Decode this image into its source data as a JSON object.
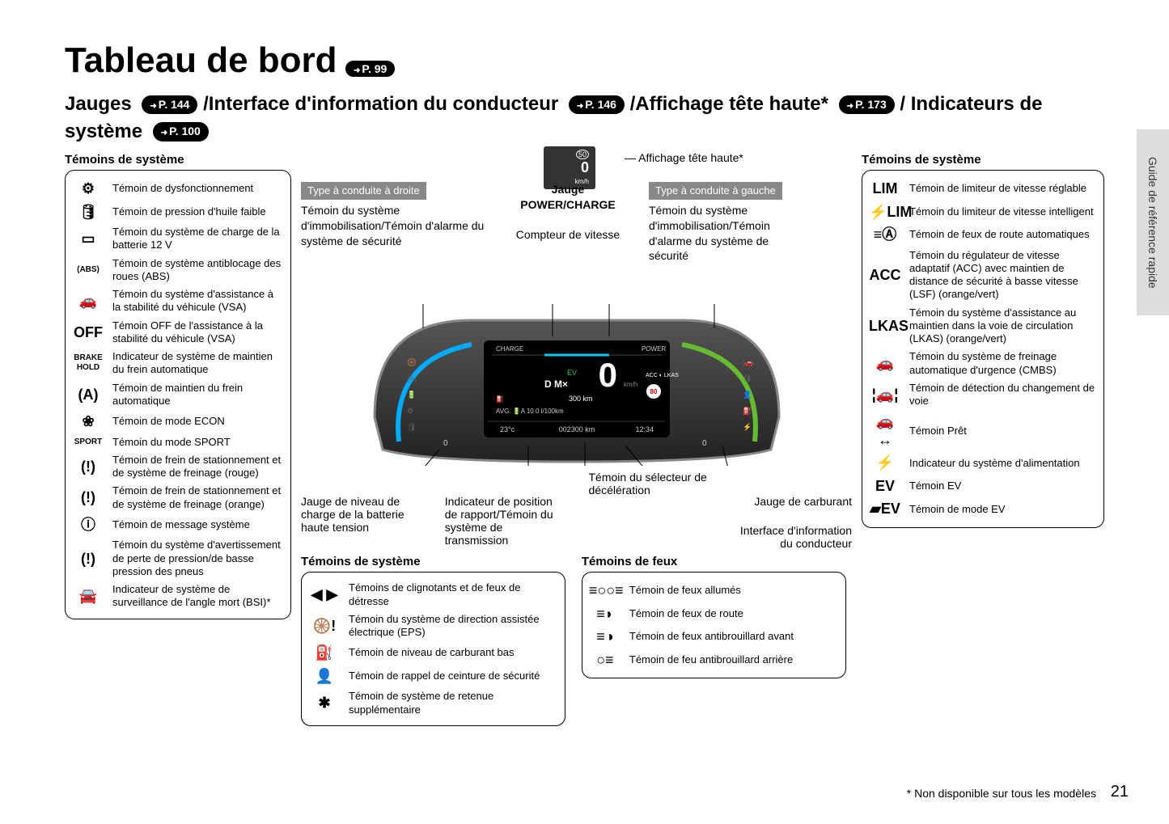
{
  "sideTab": "Guide de référence rapide",
  "title": "Tableau de bord",
  "titleRef": "P. 99",
  "subtitleParts": {
    "p1": "Jauges",
    "r1": "P. 144",
    "p2": "/Interface d'information du conducteur",
    "r2": "P. 146",
    "p3": "/Affichage tête haute*",
    "r3": "P. 173",
    "p4": "/ Indicateurs de système",
    "r4": "P. 100"
  },
  "sectionTitle": "Témoins de système",
  "lightsTitle": "Témoins de feux",
  "leftIndicators": [
    {
      "icon": "⚙",
      "label": "Témoin de dysfonctionnement"
    },
    {
      "icon": "🛢",
      "label": "Témoin de pression d'huile faible"
    },
    {
      "icon": "▭",
      "label": "Témoin du système de charge de la batterie 12 V"
    },
    {
      "icon": "(ABS)",
      "label": "Témoin de système antiblocage des roues (ABS)"
    },
    {
      "icon": "🚗",
      "label": "Témoin du système d'assistance à la stabilité du véhicule (VSA)"
    },
    {
      "icon": "OFF",
      "label": "Témoin OFF de l'assistance à la stabilité du véhicule (VSA)"
    },
    {
      "icon": "BRAKE HOLD",
      "label": "Indicateur de système de maintien du frein automatique"
    },
    {
      "icon": "(A)",
      "label": "Témoin de maintien du frein automatique"
    },
    {
      "icon": "❀",
      "label": "Témoin de mode ECON"
    },
    {
      "icon": "SPORT",
      "label": "Témoin du mode SPORT"
    },
    {
      "icon": "(!)",
      "label": "Témoin de frein de stationnement et de système de freinage (rouge)"
    },
    {
      "icon": "(!)",
      "label": "Témoin de frein de stationnement et de système de freinage (orange)"
    },
    {
      "icon": "ⓘ",
      "label": "Témoin de message système"
    },
    {
      "icon": "(!)",
      "label": "Témoin du système d'avertissement de perte de pression/de basse pression des pneus"
    },
    {
      "icon": "🚘",
      "label": "Indicateur de système de surveillance de l'angle mort (BSI)*"
    }
  ],
  "midTop": {
    "rightDrive": "Type à conduite à droite",
    "rightDriveText": "Témoin du système d'immobilisation/Témoin d'alarme du système de sécurité",
    "gaugeLabel": "Jauge POWER/CHARGE",
    "speedLabel": "Compteur de vitesse",
    "hudLabel": "Affichage tête haute*",
    "leftDrive": "Type à conduite à gauche",
    "leftDriveText": "Témoin du système d'immobilisation/Témoin d'alarme du système de sécurité"
  },
  "hudBox": {
    "speed": "0",
    "limit": "50",
    "unit": "km/h"
  },
  "clusterData": {
    "range": "300 km",
    "avg": "AVG. 🔋A  10.0 l/100km",
    "temp": "23°c",
    "odo": "002300 km",
    "time": "12:34",
    "speed": "0",
    "speedLimit": "80 km/h",
    "gear": "D M×"
  },
  "midBottomAnnot": {
    "a1": "Jauge de niveau de charge de la batterie haute tension",
    "a2": "Indicateur de position de rapport/Témoin du système de transmission",
    "a3": "Témoin du sélecteur de décélération",
    "a4": "Jauge de carburant",
    "a5": "Interface d'information du conducteur"
  },
  "midIndicators": [
    {
      "icon": "◀ ▶",
      "label": "Témoins de clignotants et de feux de détresse"
    },
    {
      "icon": "🛞!",
      "label": "Témoin du système de direction assistée électrique (EPS)"
    },
    {
      "icon": "⛽",
      "label": "Témoin de niveau de carburant bas"
    },
    {
      "icon": "👤",
      "label": "Témoin de rappel de ceinture de sécurité"
    },
    {
      "icon": "✱",
      "label": "Témoin de système de retenue supplémentaire"
    }
  ],
  "lightIndicators": [
    {
      "icon": "≡○○≡",
      "label": "Témoin de feux allumés"
    },
    {
      "icon": "≡◗",
      "label": "Témoin de feux de route"
    },
    {
      "icon": "≡◑",
      "label": "Témoin de feux antibrouillard avant"
    },
    {
      "icon": "○≡",
      "label": "Témoin de feu antibrouillard arrière"
    }
  ],
  "rightIndicators": [
    {
      "icon": "LIM",
      "label": "Témoin de limiteur de vitesse réglable"
    },
    {
      "icon": "⚡LIM",
      "label": "Témoin du limiteur de vitesse intelligent"
    },
    {
      "icon": "≡Ⓐ",
      "label": "Témoin de feux de route automatiques"
    },
    {
      "icon": "ACC",
      "label": "Témoin du régulateur de vitesse adaptatif (ACC) avec maintien de distance de sécurité à basse vitesse (LSF) (orange/vert)"
    },
    {
      "icon": "LKAS",
      "label": "Témoin du système d'assistance au maintien dans la voie de circulation (LKAS) (orange/vert)"
    },
    {
      "icon": "🚗",
      "label": "Témoin du système de freinage automatique d'urgence (CMBS)"
    },
    {
      "icon": "¦🚗¦",
      "label": "Témoin de détection du changement de voie"
    },
    {
      "icon": "🚗↔",
      "label": "Témoin Prêt"
    },
    {
      "icon": "⚡",
      "label": "Indicateur du système d'alimentation"
    },
    {
      "icon": "EV",
      "label": "Témoin EV"
    },
    {
      "icon": "▰EV",
      "label": "Témoin de mode EV"
    }
  ],
  "footnote": "* Non disponible sur tous les modèles",
  "pageNumber": "21"
}
